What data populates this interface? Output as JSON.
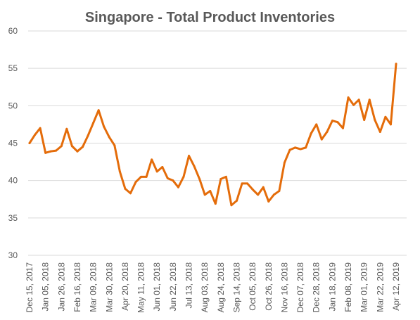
{
  "chart_data": {
    "type": "line",
    "title": "Singapore - Total Product Inventories",
    "xlabel": "",
    "ylabel": "",
    "ylim": [
      30,
      60
    ],
    "yticks": [
      30,
      35,
      40,
      45,
      50,
      55,
      60
    ],
    "grid": true,
    "legend": "none",
    "colors": {
      "line": "#E46C0A",
      "grid": "#D9D9D9",
      "text": "#595959"
    },
    "x_tick_labels": [
      "Dec 15, 2017",
      "Jan 05, 2018",
      "Jan 26, 2018",
      "Feb 16, 2018",
      "Mar 09, 2018",
      "Mar 30, 2018",
      "Apr 20, 2018",
      "May 11, 2018",
      "Jun 01, 2018",
      "Jun 22, 2018",
      "Jul 13, 2018",
      "Aug 03, 2018",
      "Aug 24, 2018",
      "Sep 14, 2018",
      "Oct 05, 2018",
      "Oct 26, 2018",
      "Nov 16, 2018",
      "Dec 07, 2018",
      "Dec 28, 2018",
      "Jan 18, 2019",
      "Feb 08, 2019",
      "Mar 01, 2019",
      "Mar 22, 2019",
      "Apr 12, 2019"
    ],
    "series": [
      {
        "values": [
          45.0,
          46.1,
          47.0,
          43.7,
          43.9,
          44.0,
          44.6,
          46.9,
          44.6,
          43.9,
          44.5,
          46.0,
          47.7,
          49.4,
          47.2,
          45.8,
          44.7,
          41.2,
          38.9,
          38.3,
          39.8,
          40.5,
          40.5,
          42.8,
          41.2,
          41.8,
          40.3,
          40.0,
          39.1,
          40.5,
          43.3,
          41.9,
          40.2,
          38.1,
          38.6,
          36.9,
          40.2,
          40.5,
          36.7,
          37.3,
          39.6,
          39.6,
          38.8,
          38.1,
          39.1,
          37.2,
          38.1,
          38.6,
          42.4,
          44.1,
          44.4,
          44.2,
          44.4,
          46.3,
          47.5,
          45.5,
          46.5,
          48.0,
          47.8,
          47.0,
          51.1,
          50.1,
          50.8,
          48.1,
          50.8,
          48.1,
          46.5,
          48.5,
          47.5,
          55.6
        ]
      }
    ]
  }
}
